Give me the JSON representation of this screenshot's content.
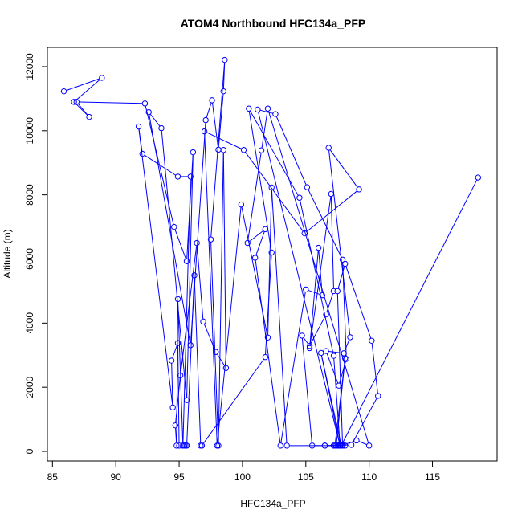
{
  "chart_data": {
    "type": "line",
    "title": "ATOM4 Northbound HFC134a_PFP",
    "xlabel": "HFC134a_PFP",
    "ylabel": "Altitude (m)",
    "xlim": [
      84.6,
      120.1
    ],
    "ylim": [
      -300,
      12600
    ],
    "xticks": [
      85,
      90,
      95,
      100,
      105,
      110,
      115
    ],
    "yticks": [
      0,
      2000,
      4000,
      6000,
      8000,
      10000,
      12000
    ],
    "xtick_labels": [
      "85",
      "90",
      "95",
      "100",
      "105",
      "110",
      "115"
    ],
    "ytick_labels": [
      "0",
      "2000",
      "4000",
      "6000",
      "8000",
      "10000",
      "12000"
    ],
    "grid": false,
    "markers": "open-circle",
    "color": "#0000ff",
    "series": [
      {
        "x": [
          85.9,
          88.9,
          86.7,
          87.9,
          86.9,
          92.3,
          94.6,
          95.6,
          96.1,
          95.6,
          93.6,
          92.6,
          95.9,
          97.1,
          97.6,
          98.1,
          98.5,
          98.6,
          97.5,
          98.1,
          98.5,
          98.7,
          97.9,
          96.9,
          96.4,
          95.1,
          94.7,
          94.8,
          94.9,
          95.3,
          95.9,
          94.9,
          92.1,
          91.8,
          94.5,
          94.4,
          94.9,
          95.0,
          95.4,
          95.5,
          95.6,
          96.2,
          96.7,
          96.8,
          101.8,
          102.3,
          100.5,
          104.5,
          107.2,
          107.7,
          101.2,
          102.6,
          105.1,
          107.9,
          108.2,
          107.6,
          106.6,
          108.0,
          108.5,
          106.8,
          109.2,
          104.9,
          100.1,
          97.0,
          98.0,
          99.9,
          102.0,
          102.3,
          103.5,
          107.4,
          108.1,
          107.3,
          106.5,
          108.6,
          110.7,
          110.2,
          108.1,
          107.5,
          107.9,
          107.7,
          107.6,
          107.8,
          107.7,
          106.2,
          107.8,
          109.0,
          110.0,
          102.0,
          101.5,
          100.4,
          101.8,
          101.0,
          103.0,
          105.0,
          106.3,
          106.0,
          105.3,
          107.0,
          107.2,
          106.6,
          105.3,
          104.7,
          105.5,
          106.5,
          107.9,
          107.7,
          107.2,
          107.5,
          107.6,
          108.1,
          107.7,
          107.8,
          118.6
        ],
        "y": [
          11230,
          11650,
          10900,
          10430,
          10900,
          10850,
          7000,
          5930,
          9330,
          1600,
          10080,
          10580,
          3310,
          10330,
          10950,
          9410,
          11230,
          12210,
          6610,
          180,
          9400,
          2600,
          3100,
          4050,
          6500,
          2370,
          810,
          180,
          4750,
          180,
          8570,
          8570,
          9280,
          10130,
          1370,
          2830,
          3380,
          180,
          180,
          180,
          180,
          5490,
          180,
          180,
          2940,
          6200,
          10690,
          7910,
          2980,
          180,
          10660,
          10520,
          8240,
          5980,
          2880,
          2050,
          3130,
          3060,
          3560,
          9470,
          8170,
          6800,
          9400,
          9980,
          180,
          7700,
          3550,
          8230,
          180,
          180,
          2900,
          180,
          180,
          200,
          1730,
          3450,
          5850,
          5000,
          200,
          200,
          180,
          180,
          180,
          3070,
          180,
          340,
          180,
          10690,
          9390,
          6500,
          6930,
          6040,
          180,
          5050,
          4870,
          6350,
          3220,
          8030,
          5000,
          4270,
          3290,
          3610,
          180,
          180,
          180,
          180,
          180,
          180,
          180,
          180,
          180,
          180,
          8540
        ]
      }
    ]
  }
}
